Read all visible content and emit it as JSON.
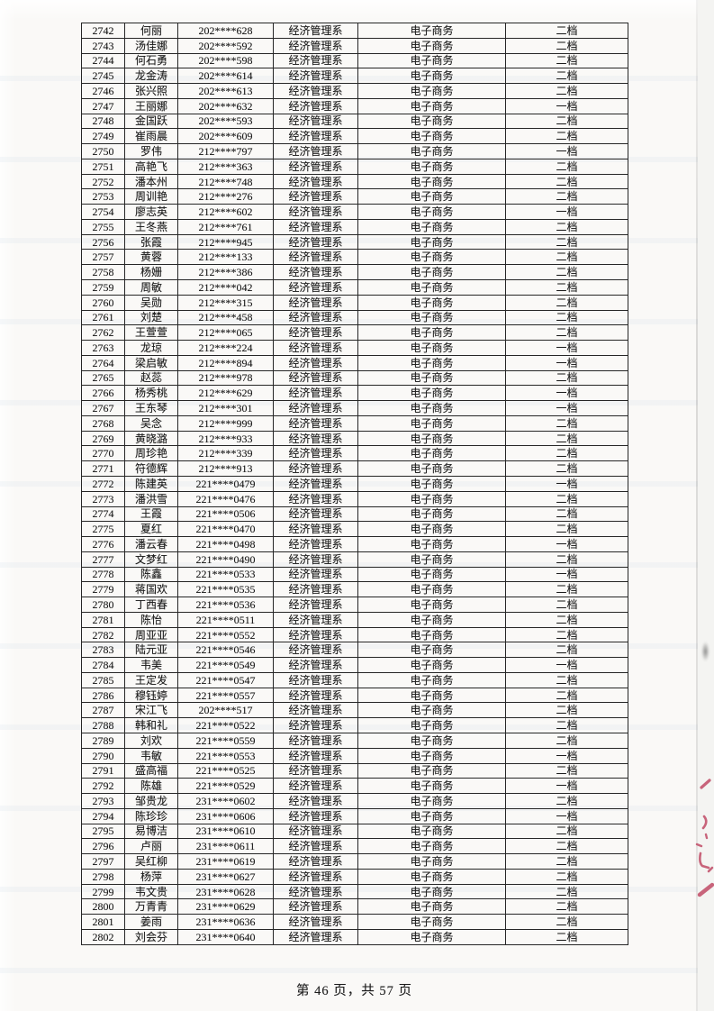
{
  "page": {
    "footer_text": "第 46 页，共 57 页"
  },
  "colors": {
    "ink_red": "#c2506a"
  },
  "table": {
    "rows": [
      [
        "2742",
        "何丽",
        "202****628",
        "经济管理系",
        "电子商务",
        "二档"
      ],
      [
        "2743",
        "汤佳娜",
        "202****592",
        "经济管理系",
        "电子商务",
        "二档"
      ],
      [
        "2744",
        "何石勇",
        "202****598",
        "经济管理系",
        "电子商务",
        "二档"
      ],
      [
        "2745",
        "龙金涛",
        "202****614",
        "经济管理系",
        "电子商务",
        "二档"
      ],
      [
        "2746",
        "张兴照",
        "202****613",
        "经济管理系",
        "电子商务",
        "二档"
      ],
      [
        "2747",
        "王丽娜",
        "202****632",
        "经济管理系",
        "电子商务",
        "一档"
      ],
      [
        "2748",
        "金国跃",
        "202****593",
        "经济管理系",
        "电子商务",
        "二档"
      ],
      [
        "2749",
        "崔雨晨",
        "202****609",
        "经济管理系",
        "电子商务",
        "二档"
      ],
      [
        "2750",
        "罗伟",
        "212****797",
        "经济管理系",
        "电子商务",
        "一档"
      ],
      [
        "2751",
        "高艳飞",
        "212****363",
        "经济管理系",
        "电子商务",
        "二档"
      ],
      [
        "2752",
        "潘本州",
        "212****748",
        "经济管理系",
        "电子商务",
        "二档"
      ],
      [
        "2753",
        "周训艳",
        "212****276",
        "经济管理系",
        "电子商务",
        "二档"
      ],
      [
        "2754",
        "廖志英",
        "212****602",
        "经济管理系",
        "电子商务",
        "一档"
      ],
      [
        "2755",
        "王冬燕",
        "212****761",
        "经济管理系",
        "电子商务",
        "二档"
      ],
      [
        "2756",
        "张霞",
        "212****945",
        "经济管理系",
        "电子商务",
        "二档"
      ],
      [
        "2757",
        "黄蓉",
        "212****133",
        "经济管理系",
        "电子商务",
        "二档"
      ],
      [
        "2758",
        "杨姗",
        "212****386",
        "经济管理系",
        "电子商务",
        "二档"
      ],
      [
        "2759",
        "周敏",
        "212****042",
        "经济管理系",
        "电子商务",
        "二档"
      ],
      [
        "2760",
        "吴勋",
        "212****315",
        "经济管理系",
        "电子商务",
        "二档"
      ],
      [
        "2761",
        "刘楚",
        "212****458",
        "经济管理系",
        "电子商务",
        "二档"
      ],
      [
        "2762",
        "王萱萱",
        "212****065",
        "经济管理系",
        "电子商务",
        "二档"
      ],
      [
        "2763",
        "龙琼",
        "212****224",
        "经济管理系",
        "电子商务",
        "一档"
      ],
      [
        "2764",
        "梁启敏",
        "212****894",
        "经济管理系",
        "电子商务",
        "一档"
      ],
      [
        "2765",
        "赵蕊",
        "212****978",
        "经济管理系",
        "电子商务",
        "二档"
      ],
      [
        "2766",
        "杨秀桃",
        "212****629",
        "经济管理系",
        "电子商务",
        "一档"
      ],
      [
        "2767",
        "王东琴",
        "212****301",
        "经济管理系",
        "电子商务",
        "一档"
      ],
      [
        "2768",
        "吴念",
        "212****999",
        "经济管理系",
        "电子商务",
        "二档"
      ],
      [
        "2769",
        "黄晓潞",
        "212****933",
        "经济管理系",
        "电子商务",
        "二档"
      ],
      [
        "2770",
        "周珍艳",
        "212****339",
        "经济管理系",
        "电子商务",
        "二档"
      ],
      [
        "2771",
        "符德辉",
        "212****913",
        "经济管理系",
        "电子商务",
        "二档"
      ],
      [
        "2772",
        "陈建英",
        "221****0479",
        "经济管理系",
        "电子商务",
        "一档"
      ],
      [
        "2773",
        "潘洪雪",
        "221****0476",
        "经济管理系",
        "电子商务",
        "二档"
      ],
      [
        "2774",
        "王霞",
        "221****0506",
        "经济管理系",
        "电子商务",
        "二档"
      ],
      [
        "2775",
        "夏红",
        "221****0470",
        "经济管理系",
        "电子商务",
        "二档"
      ],
      [
        "2776",
        "潘云春",
        "221****0498",
        "经济管理系",
        "电子商务",
        "一档"
      ],
      [
        "2777",
        "文梦红",
        "221****0490",
        "经济管理系",
        "电子商务",
        "二档"
      ],
      [
        "2778",
        "陈鑫",
        "221****0533",
        "经济管理系",
        "电子商务",
        "一档"
      ],
      [
        "2779",
        "蒋国欢",
        "221****0535",
        "经济管理系",
        "电子商务",
        "二档"
      ],
      [
        "2780",
        "丁西春",
        "221****0536",
        "经济管理系",
        "电子商务",
        "二档"
      ],
      [
        "2781",
        "陈怡",
        "221****0511",
        "经济管理系",
        "电子商务",
        "二档"
      ],
      [
        "2782",
        "周亚亚",
        "221****0552",
        "经济管理系",
        "电子商务",
        "二档"
      ],
      [
        "2783",
        "陆元亚",
        "221****0546",
        "经济管理系",
        "电子商务",
        "二档"
      ],
      [
        "2784",
        "韦美",
        "221****0549",
        "经济管理系",
        "电子商务",
        "一档"
      ],
      [
        "2785",
        "王定发",
        "221****0547",
        "经济管理系",
        "电子商务",
        "二档"
      ],
      [
        "2786",
        "穆钰婷",
        "221****0557",
        "经济管理系",
        "电子商务",
        "二档"
      ],
      [
        "2787",
        "宋江飞",
        "202****517",
        "经济管理系",
        "电子商务",
        "二档"
      ],
      [
        "2788",
        "韩和礼",
        "221****0522",
        "经济管理系",
        "电子商务",
        "二档"
      ],
      [
        "2789",
        "刘欢",
        "221****0559",
        "经济管理系",
        "电子商务",
        "二档"
      ],
      [
        "2790",
        "韦敏",
        "221****0553",
        "经济管理系",
        "电子商务",
        "一档"
      ],
      [
        "2791",
        "盛高福",
        "221****0525",
        "经济管理系",
        "电子商务",
        "二档"
      ],
      [
        "2792",
        "陈雄",
        "221****0529",
        "经济管理系",
        "电子商务",
        "一档"
      ],
      [
        "2793",
        "邹贵龙",
        "231****0602",
        "经济管理系",
        "电子商务",
        "二档"
      ],
      [
        "2794",
        "陈珍珍",
        "231****0606",
        "经济管理系",
        "电子商务",
        "一档"
      ],
      [
        "2795",
        "易博洁",
        "231****0610",
        "经济管理系",
        "电子商务",
        "二档"
      ],
      [
        "2796",
        "卢丽",
        "231****0611",
        "经济管理系",
        "电子商务",
        "二档"
      ],
      [
        "2797",
        "吴红柳",
        "231****0619",
        "经济管理系",
        "电子商务",
        "二档"
      ],
      [
        "2798",
        "杨萍",
        "231****0627",
        "经济管理系",
        "电子商务",
        "二档"
      ],
      [
        "2799",
        "韦文贵",
        "231****0628",
        "经济管理系",
        "电子商务",
        "二档"
      ],
      [
        "2800",
        "万青青",
        "231****0629",
        "经济管理系",
        "电子商务",
        "二档"
      ],
      [
        "2801",
        "姜雨",
        "231****0636",
        "经济管理系",
        "电子商务",
        "二档"
      ],
      [
        "2802",
        "刘会芬",
        "231****0640",
        "经济管理系",
        "电子商务",
        "二档"
      ]
    ]
  }
}
